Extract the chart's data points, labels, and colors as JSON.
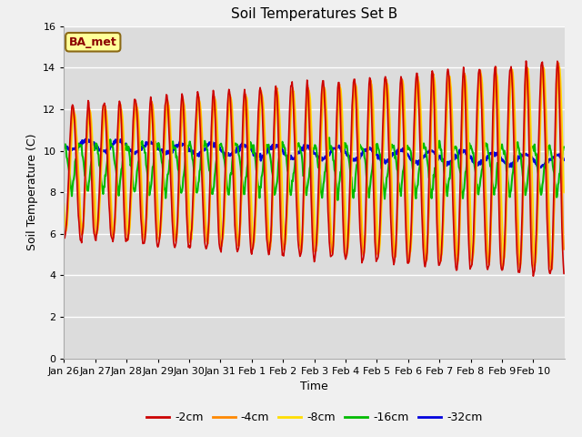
{
  "title": "Soil Temperatures Set B",
  "xlabel": "Time",
  "ylabel": "Soil Temperature (C)",
  "annotation": "BA_met",
  "ylim": [
    0,
    16
  ],
  "yticks": [
    0,
    2,
    4,
    6,
    8,
    10,
    12,
    14,
    16
  ],
  "legend_labels": [
    "-2cm",
    "-4cm",
    "-8cm",
    "-16cm",
    "-32cm"
  ],
  "line_colors": [
    "#cc0000",
    "#ff8800",
    "#ffdd00",
    "#00bb00",
    "#0000dd"
  ],
  "line_widths": [
    1.2,
    1.2,
    1.2,
    1.5,
    1.8
  ],
  "fig_bg_color": "#f0f0f0",
  "plot_bg_color": "#dcdcdc",
  "title_fontsize": 11,
  "axis_label_fontsize": 9,
  "tick_label_fontsize": 8,
  "x_tick_labels": [
    "Jan 26",
    "Jan 27",
    "Jan 28",
    "Jan 29",
    "Jan 30",
    "Jan 31",
    "Feb 1",
    "Feb 2",
    "Feb 3",
    "Feb 4",
    "Feb 5",
    "Feb 6",
    "Feb 7",
    "Feb 8",
    "Feb 9",
    "Feb 10"
  ],
  "n_days": 16,
  "n_pts_per_day": 48
}
